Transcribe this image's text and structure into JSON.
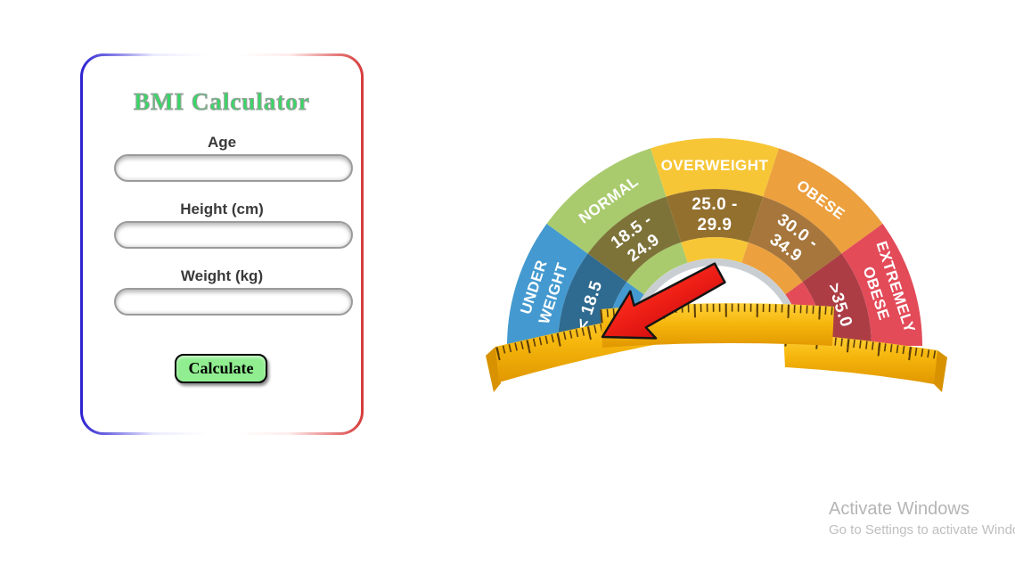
{
  "form": {
    "title": "BMI Calculator",
    "title_color": "#37d765",
    "fields": [
      {
        "label": "Age",
        "value": ""
      },
      {
        "label": "Height (cm)",
        "value": ""
      },
      {
        "label": "Weight (kg)",
        "value": ""
      }
    ],
    "button": {
      "label": "Calculate",
      "color": "#90ee90"
    }
  },
  "gauge": {
    "segments": [
      {
        "label": "UNDER WEIGHT",
        "label_lines": [
          "UNDER",
          "WEIGHT"
        ],
        "range": "< 18.5",
        "range_lines": [
          "< 18.5"
        ],
        "outer_color": "#449ad0",
        "inner_color": "#2f6a90"
      },
      {
        "label": "NORMAL",
        "label_lines": [
          "NORMAL"
        ],
        "range": "18.5 - 24.9",
        "range_lines": [
          "18.5 -",
          "24.9"
        ],
        "outer_color": "#a9cb6e",
        "inner_color": "#7d7339"
      },
      {
        "label": "OVERWEIGHT",
        "label_lines": [
          "OVERWEIGHT"
        ],
        "range": "25.0 - 29.9",
        "range_lines": [
          "25.0 -",
          "29.9"
        ],
        "outer_color": "#f7c636",
        "inner_color": "#94702e"
      },
      {
        "label": "OBESE",
        "label_lines": [
          "OBESE"
        ],
        "range": "30.0 - 34.9",
        "range_lines": [
          "30.0 -",
          "34.9"
        ],
        "outer_color": "#eca03e",
        "inner_color": "#a6763c"
      },
      {
        "label": "EXTREMELY OBESE",
        "label_lines": [
          "EXTREMELY",
          "OBESE"
        ],
        "range": ">35.0",
        "range_lines": [
          ">35.0"
        ],
        "outer_color": "#e34b59",
        "inner_color": "#ac3d45"
      }
    ],
    "hub_rim_color": "#c9ced3",
    "label_text_color": "#ffffff",
    "ruler_color": "#f6b70d",
    "ruler_tick_color": "#5b3d08",
    "pointer_color": "#e81414"
  },
  "watermark": {
    "line1": "Activate Windows",
    "line2": "Go to Settings to activate Windows"
  }
}
